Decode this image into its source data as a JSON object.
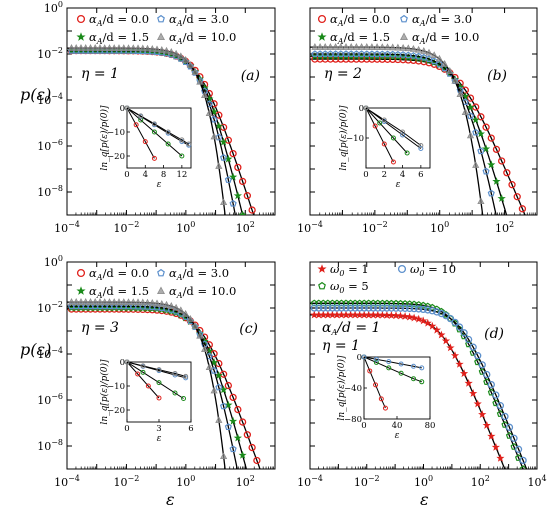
{
  "colors": {
    "red": "#e0201b",
    "green": "#1a8a1a",
    "blue": "#5b8fcc",
    "gray": "#8a8a8a",
    "fit": "#000000"
  },
  "shared": {
    "ylabel": "p(ε)",
    "xlabel": "ε",
    "inset_ylabel": "ln_q[p(ε)/p(0)]",
    "inset_xlabel": "ε"
  },
  "chart_data": [
    {
      "type": "scatter",
      "panel_label": "(a)",
      "annotations": [
        "η = 1"
      ],
      "xscale": "log",
      "yscale": "log",
      "xlim": [
        0.0001,
        1000
      ],
      "ylim": [
        1e-09,
        1
      ],
      "xticks": [
        "10−4",
        "10−2",
        "100",
        "102"
      ],
      "yticks": [
        "100",
        "10−2",
        "10−4",
        "10−6",
        "10−8"
      ],
      "legend": [
        "αA/d = 0.0",
        "αA/d = 3.0",
        "αA/d = 1.5",
        "αA/d = 10.0"
      ],
      "series": [
        {
          "name": "αA/d = 0.0",
          "marker": "circle",
          "color": "red",
          "plateau": 0.014,
          "eps0": 0.8,
          "q": 1.25
        },
        {
          "name": "αA/d = 1.5",
          "marker": "star",
          "color": "green",
          "plateau": 0.014,
          "eps0": 0.8,
          "q": 1.18
        },
        {
          "name": "αA/d = 3.0",
          "marker": "pentagon",
          "color": "blue",
          "plateau": 0.014,
          "eps0": 0.8,
          "q": 1.13
        },
        {
          "name": "αA/d = 10.0",
          "marker": "triangle",
          "color": "gray",
          "plateau": 0.018,
          "eps0": 0.8,
          "q": 1.05
        }
      ],
      "inset": {
        "xlim": [
          0,
          14
        ],
        "ylim": [
          -25,
          0
        ],
        "xticks": [
          "0",
          "4",
          "8",
          "12"
        ],
        "yticks": [
          "0",
          "−10",
          "−20"
        ],
        "lines": [
          {
            "color": "red",
            "x": [
              0,
              2,
              4,
              6
            ],
            "y": [
              0,
              -7,
              -14,
              -21
            ]
          },
          {
            "color": "green",
            "x": [
              0,
              3,
              6,
              9,
              12
            ],
            "y": [
              0,
              -5,
              -10,
              -15,
              -20
            ]
          },
          {
            "color": "blue",
            "x": [
              0,
              3,
              6,
              9,
              12,
              13.5
            ],
            "y": [
              0,
              -3.5,
              -7,
              -10.5,
              -14,
              -15.5
            ]
          },
          {
            "color": "gray",
            "x": [
              0,
              3,
              6,
              9,
              12,
              13.5
            ],
            "y": [
              0,
              -3.3,
              -6.6,
              -10,
              -13.3,
              -15
            ]
          }
        ]
      }
    },
    {
      "type": "scatter",
      "panel_label": "(b)",
      "annotations": [
        "η = 2"
      ],
      "xscale": "log",
      "yscale": "log",
      "xlim": [
        0.0001,
        1000
      ],
      "ylim": [
        1e-09,
        1
      ],
      "xticks": [
        "10−4",
        "10−2",
        "100",
        "102"
      ],
      "yticks": [],
      "legend": [
        "αA/d = 0.0",
        "αA/d = 3.0",
        "αA/d = 1.5",
        "αA/d = 10.0"
      ],
      "series": [
        {
          "name": "αA/d = 0.0",
          "marker": "circle",
          "color": "red",
          "plateau": 0.006,
          "eps0": 1.2,
          "q": 1.3
        },
        {
          "name": "αA/d = 1.5",
          "marker": "star",
          "color": "green",
          "plateau": 0.008,
          "eps0": 1.0,
          "q": 1.2
        },
        {
          "name": "αA/d = 3.0",
          "marker": "pentagon",
          "color": "blue",
          "plateau": 0.01,
          "eps0": 0.9,
          "q": 1.14
        },
        {
          "name": "αA/d = 10.0",
          "marker": "triangle",
          "color": "gray",
          "plateau": 0.02,
          "eps0": 0.8,
          "q": 1.05
        }
      ],
      "inset": {
        "xlim": [
          0,
          7
        ],
        "ylim": [
          -20,
          0
        ],
        "xticks": [
          "0",
          "2",
          "4",
          "6"
        ],
        "yticks": [
          "0",
          "−10"
        ],
        "lines": [
          {
            "color": "red",
            "x": [
              0,
              1,
              2,
              3
            ],
            "y": [
              0,
              -6,
              -12,
              -18
            ]
          },
          {
            "color": "green",
            "x": [
              0,
              1.5,
              3,
              4.5
            ],
            "y": [
              0,
              -5,
              -10,
              -15
            ]
          },
          {
            "color": "blue",
            "x": [
              0,
              2,
              4,
              6
            ],
            "y": [
              0,
              -4.5,
              -9,
              -13.5
            ]
          },
          {
            "color": "gray",
            "x": [
              0,
              2,
              4,
              6
            ],
            "y": [
              0,
              -4,
              -8,
              -12.5
            ]
          }
        ]
      }
    },
    {
      "type": "scatter",
      "panel_label": "(c)",
      "annotations": [
        "η = 3"
      ],
      "xscale": "log",
      "yscale": "log",
      "xlim": [
        0.0001,
        1000
      ],
      "ylim": [
        1e-09,
        1
      ],
      "xticks": [
        "10−4",
        "10−2",
        "100",
        "102"
      ],
      "yticks": [
        "100",
        "10−2",
        "10−4",
        "10−6",
        "10−8"
      ],
      "legend": [
        "αA/d = 0.0",
        "αA/d = 3.0",
        "αA/d = 1.5",
        "αA/d = 10.0"
      ],
      "series": [
        {
          "name": "αA/d = 0.0",
          "marker": "circle",
          "color": "red",
          "plateau": 0.009,
          "eps0": 1.0,
          "q": 1.28
        },
        {
          "name": "αA/d = 1.5",
          "marker": "star",
          "color": "green",
          "plateau": 0.01,
          "eps0": 0.9,
          "q": 1.2
        },
        {
          "name": "αA/d = 3.0",
          "marker": "pentagon",
          "color": "blue",
          "plateau": 0.012,
          "eps0": 0.85,
          "q": 1.14
        },
        {
          "name": "αA/d = 10.0",
          "marker": "triangle",
          "color": "gray",
          "plateau": 0.018,
          "eps0": 0.8,
          "q": 1.05
        }
      ],
      "inset": {
        "xlim": [
          0,
          6
        ],
        "ylim": [
          -25,
          0
        ],
        "xticks": [
          "0",
          "3",
          "6"
        ],
        "yticks": [
          "0",
          "−10",
          "−20"
        ],
        "lines": [
          {
            "color": "red",
            "x": [
              0,
              1,
              2,
              3
            ],
            "y": [
              0,
              -5,
              -10,
              -15
            ]
          },
          {
            "color": "green",
            "x": [
              0,
              1.5,
              3,
              4.5,
              5.3
            ],
            "y": [
              0,
              -4.3,
              -8.6,
              -12.9,
              -15.2
            ]
          },
          {
            "color": "blue",
            "x": [
              0,
              1.5,
              3,
              4.5,
              5.5
            ],
            "y": [
              0,
              -1.8,
              -3.6,
              -5.4,
              -6.6
            ]
          },
          {
            "color": "gray",
            "x": [
              0,
              1.5,
              3,
              4.5,
              5.5
            ],
            "y": [
              0,
              -1.6,
              -3.2,
              -4.8,
              -6
            ]
          }
        ]
      }
    },
    {
      "type": "scatter",
      "panel_label": "(d)",
      "annotations": [
        "αA/d = 1",
        "η = 1"
      ],
      "xscale": "log",
      "yscale": "log",
      "xlim": [
        0.0001,
        10000
      ],
      "ylim": [
        1e-09,
        1
      ],
      "xticks": [
        "10−4",
        "10−2",
        "100",
        "102",
        "104"
      ],
      "yticks": [],
      "legend": [
        "ω0 = 1",
        "ω0 = 10",
        "ω0 = 5"
      ],
      "series": [
        {
          "name": "ω0 = 1",
          "marker": "star",
          "color": "red",
          "plateau": 0.005,
          "eps0": 1.5,
          "q": 1.33
        },
        {
          "name": "ω0 = 5",
          "marker": "pentagon",
          "color": "green",
          "plateau": 0.016,
          "eps0": 4.5,
          "q": 1.33
        },
        {
          "name": "ω0 = 10",
          "marker": "circle",
          "color": "blue",
          "plateau": 0.01,
          "eps0": 7,
          "q": 1.33
        }
      ],
      "inset": {
        "xlim": [
          0,
          80
        ],
        "ylim": [
          -80,
          0
        ],
        "xticks": [
          "0",
          "40",
          "80"
        ],
        "yticks": [
          "0",
          "−40",
          "−80"
        ],
        "lines": [
          {
            "color": "red",
            "x": [
              0,
              7,
              14,
              21,
              26
            ],
            "y": [
              0,
              -18,
              -36,
              -54,
              -66
            ]
          },
          {
            "color": "green",
            "x": [
              0,
              15,
              30,
              45,
              60,
              70
            ],
            "y": [
              0,
              -7,
              -14,
              -21,
              -28,
              -32
            ]
          },
          {
            "color": "blue",
            "x": [
              0,
              15,
              30,
              45,
              60,
              70
            ],
            "y": [
              0,
              -3,
              -6,
              -9,
              -12,
              -14
            ]
          }
        ]
      }
    }
  ]
}
